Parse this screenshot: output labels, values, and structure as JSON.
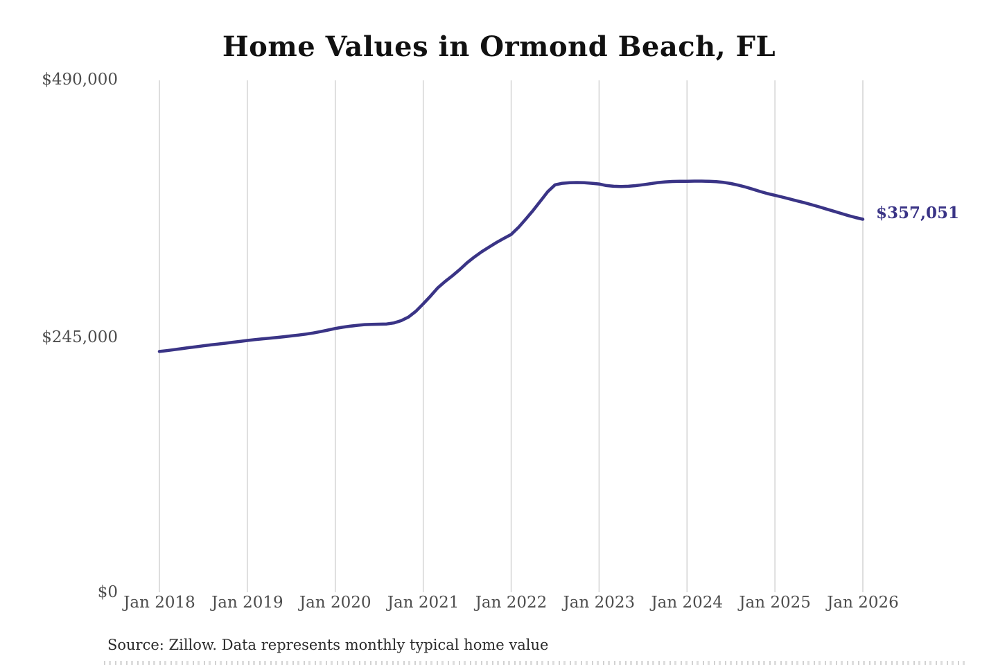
{
  "page": {
    "background_color": "#ffffff"
  },
  "chart_data": {
    "type": "line",
    "title": "Home Values in Ormond Beach, FL",
    "source_note": "Source: Zillow. Data represents monthly typical home value",
    "series_name": "Monthly typical home value",
    "unit": "USD",
    "x_interval": "monthly",
    "x_range": [
      "Jan 2018",
      "Jan 2026"
    ],
    "x_tick_labels": [
      "Jan 2018",
      "Jan 2019",
      "Jan 2020",
      "Jan 2021",
      "Jan 2022",
      "Jan 2023",
      "Jan 2024",
      "Jan 2025",
      "Jan 2026"
    ],
    "y_tick_labels": [
      "$0",
      "$245,000",
      "$490,000"
    ],
    "y_ticks": [
      0,
      245000,
      490000
    ],
    "ylim": [
      0,
      490000
    ],
    "grid": "vertical-only",
    "legend": "none",
    "end_label": "$357,051",
    "end_value": 357051,
    "line_color": "#3a3486",
    "grid_color": "#cccccc",
    "values_note": "monthly values, Jan 2018 through Jan 2026 inclusive (97 points), estimated from plot except final labeled value",
    "values": [
      230500,
      231300,
      232200,
      233100,
      234100,
      235000,
      235900,
      236800,
      237600,
      238400,
      239300,
      240100,
      241000,
      241800,
      242500,
      243200,
      243900,
      244600,
      245400,
      246200,
      247100,
      248200,
      249500,
      251000,
      252500,
      253700,
      254700,
      255500,
      256200,
      256500,
      256600,
      256800,
      257800,
      260000,
      263500,
      269000,
      276000,
      283500,
      291500,
      297500,
      303000,
      309000,
      315500,
      321000,
      326000,
      330500,
      334800,
      338700,
      342500,
      349200,
      357200,
      365500,
      374500,
      383500,
      390000,
      391500,
      392000,
      392200,
      392000,
      391500,
      390800,
      389300,
      388600,
      388400,
      388600,
      389200,
      390100,
      391100,
      392100,
      392800,
      393200,
      393400,
      393400,
      393500,
      393500,
      393400,
      393000,
      392300,
      391200,
      389700,
      387900,
      385800,
      383600,
      381600,
      380000,
      378300,
      376500,
      374700,
      372900,
      371000,
      369000,
      366900,
      364800,
      362700,
      360600,
      358700,
      357051
    ]
  }
}
